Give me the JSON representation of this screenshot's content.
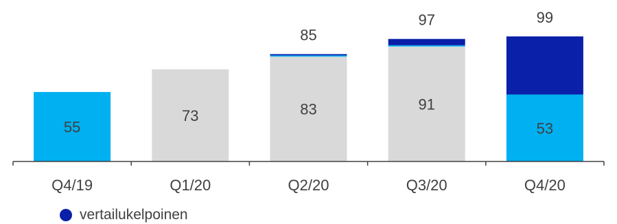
{
  "chart_data": {
    "type": "bar",
    "stacked": true,
    "categories": [
      "Q4/19",
      "Q1/20",
      "Q2/20",
      "Q3/20",
      "Q4/20"
    ],
    "segments": [
      {
        "color": "#00b0f0",
        "values": [
          55,
          null,
          null,
          null,
          53
        ]
      },
      {
        "color": "#d9d9d9",
        "values": [
          null,
          73,
          83,
          91,
          null
        ]
      },
      {
        "color": "#00b0f0",
        "values": [
          null,
          null,
          1,
          1,
          null
        ]
      },
      {
        "name": "vertailukelpoinen",
        "color": "#0a20a8",
        "values": [
          null,
          null,
          1,
          5,
          46
        ]
      }
    ],
    "segment_labels": [
      [
        "55",
        "",
        "",
        "",
        "53"
      ],
      [
        "",
        "73",
        "83",
        "91",
        ""
      ],
      [
        "",
        "",
        "",
        "",
        ""
      ],
      [
        "",
        "",
        "",
        "",
        ""
      ]
    ],
    "totals": [
      null,
      null,
      85,
      97,
      99
    ],
    "ylim": [
      0,
      99
    ],
    "grid": false,
    "legend_position": "bottom-left",
    "legend": [
      {
        "label": "vertailukelpoinen",
        "color": "#0a20a8",
        "shape": "circle"
      }
    ]
  }
}
